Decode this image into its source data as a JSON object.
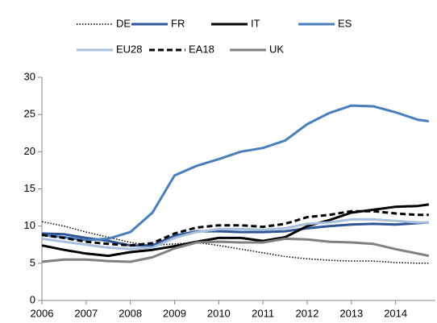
{
  "chart_data": {
    "type": "line",
    "x": [
      2006,
      2006.5,
      2007,
      2007.5,
      2008,
      2008.5,
      2009,
      2009.5,
      2010,
      2010.5,
      2011,
      2011.5,
      2012,
      2012.5,
      2013,
      2013.5,
      2014,
      2014.5,
      2014.75
    ],
    "series": [
      {
        "name": "DE",
        "color": "#000000",
        "line_style": "dotted",
        "values": [
          10.6,
          10.0,
          9.2,
          8.5,
          7.8,
          7.4,
          7.6,
          7.8,
          7.4,
          6.9,
          6.4,
          5.9,
          5.6,
          5.4,
          5.3,
          5.3,
          5.1,
          5.0,
          5.0
        ]
      },
      {
        "name": "FR",
        "color": "#2f5597",
        "line_style": "solid",
        "values": [
          9.0,
          8.9,
          8.4,
          8.0,
          7.4,
          7.4,
          8.7,
          9.3,
          9.3,
          9.2,
          9.2,
          9.3,
          9.7,
          10.0,
          10.2,
          10.3,
          10.2,
          10.4,
          10.5
        ]
      },
      {
        "name": "IT",
        "color": "#000000",
        "line_style": "solid",
        "values": [
          7.4,
          6.8,
          6.3,
          6.0,
          6.5,
          6.8,
          7.3,
          7.9,
          8.4,
          8.4,
          8.0,
          8.5,
          10.0,
          10.8,
          11.8,
          12.2,
          12.6,
          12.7,
          12.9
        ]
      },
      {
        "name": "ES",
        "color": "#4a7ebb",
        "line_style": "solid",
        "values": [
          8.8,
          8.5,
          8.1,
          8.3,
          9.2,
          11.8,
          16.8,
          18.1,
          19.0,
          20.0,
          20.5,
          21.5,
          23.7,
          25.2,
          26.2,
          26.1,
          25.3,
          24.3,
          24.1
        ]
      },
      {
        "name": "EU28",
        "color": "#a9bfdc",
        "line_style": "solid",
        "values": [
          8.3,
          7.9,
          7.5,
          7.1,
          6.9,
          7.1,
          8.4,
          9.2,
          9.6,
          9.6,
          9.5,
          9.7,
          10.3,
          10.5,
          10.9,
          10.9,
          10.7,
          10.5,
          10.5
        ]
      },
      {
        "name": "EA18",
        "color": "#000000",
        "line_style": "dashed",
        "values": [
          8.8,
          8.4,
          7.9,
          7.6,
          7.4,
          7.7,
          9.0,
          9.8,
          10.1,
          10.1,
          9.9,
          10.3,
          11.2,
          11.5,
          12.0,
          12.0,
          11.7,
          11.5,
          11.5
        ]
      },
      {
        "name": "UK",
        "color": "#808080",
        "line_style": "solid",
        "values": [
          5.2,
          5.5,
          5.5,
          5.3,
          5.2,
          5.8,
          7.0,
          7.8,
          7.9,
          7.8,
          7.8,
          8.3,
          8.2,
          7.9,
          7.8,
          7.6,
          6.9,
          6.3,
          6.0
        ]
      }
    ],
    "xlim": [
      2006,
      2014.9
    ],
    "xticks": [
      2006,
      2007,
      2008,
      2009,
      2010,
      2011,
      2012,
      2013,
      2014
    ],
    "ylim": [
      0,
      30
    ],
    "yticks": [
      0,
      5,
      10,
      15,
      20,
      25,
      30
    ],
    "legend_position": "top",
    "grid": false
  }
}
